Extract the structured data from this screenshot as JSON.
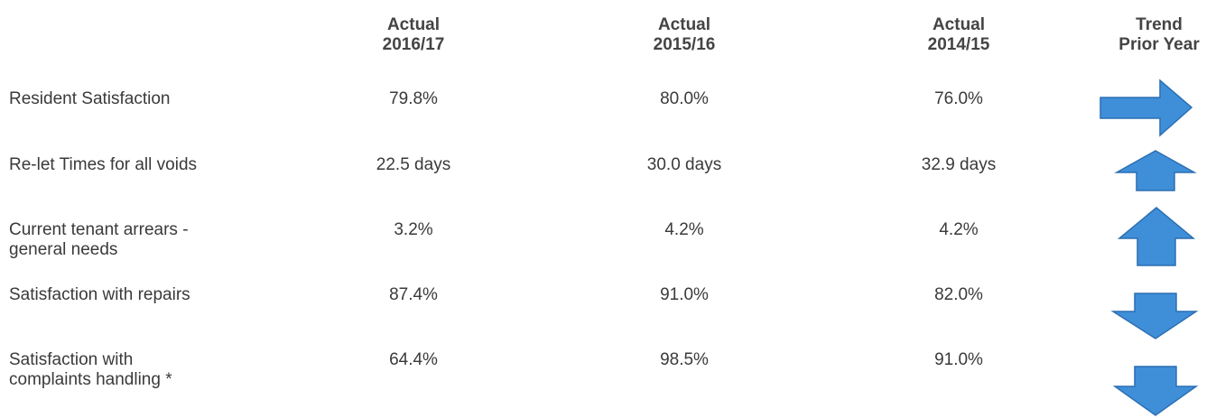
{
  "table": {
    "headers": [
      [
        "Actual",
        "2016/17"
      ],
      [
        "Actual",
        "2015/16"
      ],
      [
        "Actual",
        "2014/15"
      ],
      [
        "Trend",
        "Prior Year"
      ]
    ],
    "rows": [
      {
        "label": [
          "Resident Satisfaction"
        ],
        "values": [
          "79.8%",
          "80.0%",
          "76.0%"
        ]
      },
      {
        "label": [
          "Re-let Times for all voids"
        ],
        "values": [
          "22.5 days",
          "30.0 days",
          "32.9 days"
        ]
      },
      {
        "label": [
          "Current tenant arrears -",
          "general needs"
        ],
        "values": [
          "3.2%",
          "4.2%",
          "4.2%"
        ]
      },
      {
        "label": [
          "Satisfaction with repairs"
        ],
        "values": [
          "87.4%",
          "91.0%",
          "82.0%"
        ]
      },
      {
        "label": [
          "Satisfaction with",
          "complaints handling *"
        ],
        "values": [
          "64.4%",
          "98.5%",
          "91.0%"
        ]
      }
    ]
  }
}
